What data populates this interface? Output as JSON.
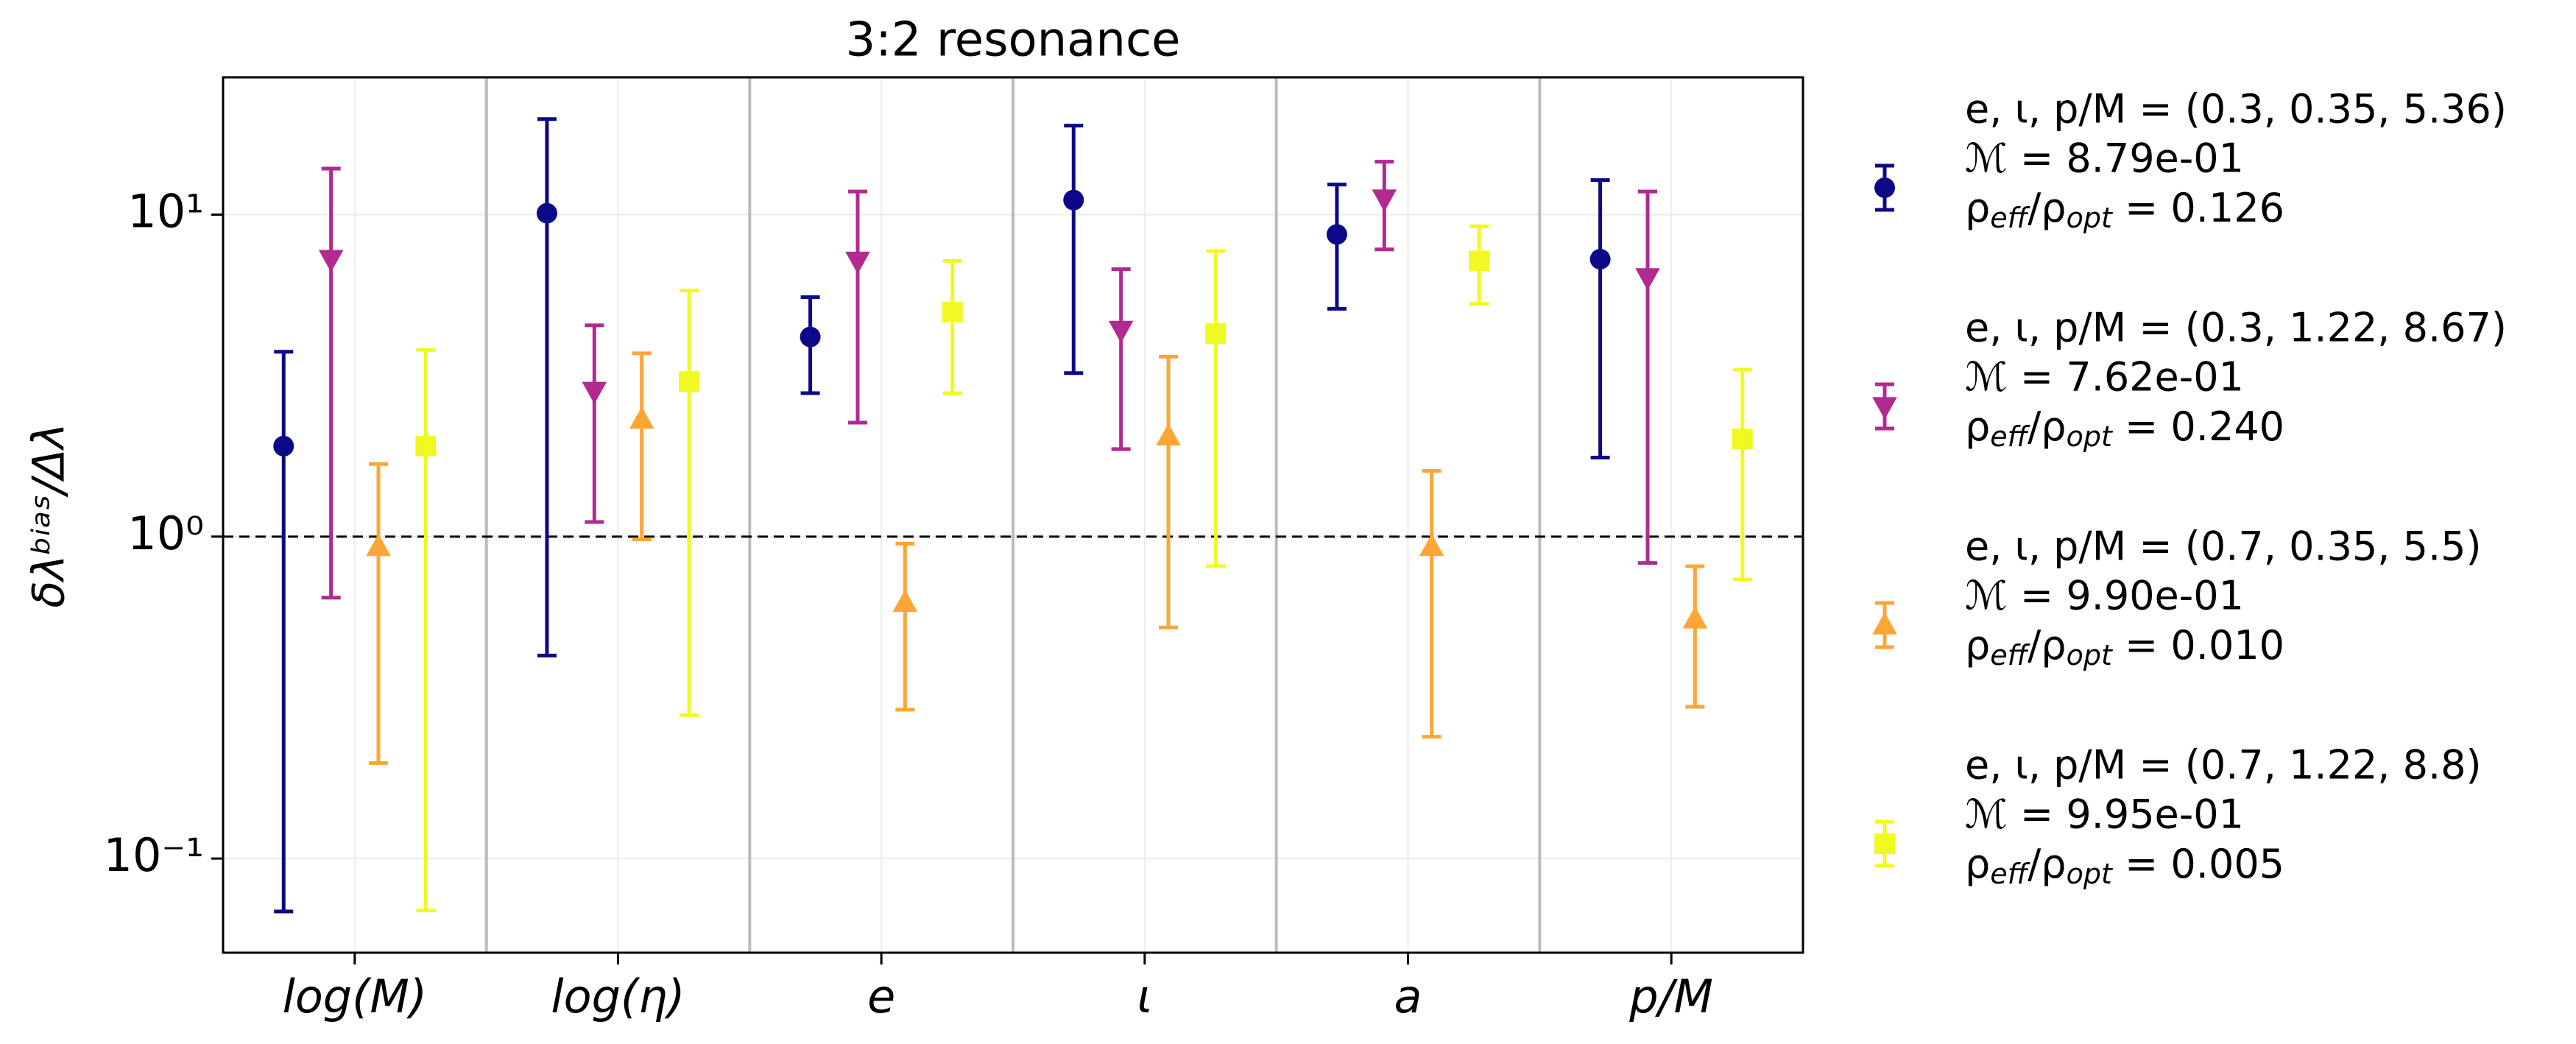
{
  "chart_data": {
    "type": "errorbar",
    "title": "3:2 resonance",
    "ylabel": "δλᵇⁱᵃˢ/Δλ",
    "categories": [
      "log(M)",
      "log(η)",
      "e",
      "ι",
      "a",
      "p/M"
    ],
    "log_y": true,
    "ylim": [
      0.051,
      26.7
    ],
    "yticks": [
      {
        "value": 0.1,
        "label": "10⁻¹"
      },
      {
        "value": 1,
        "label": "10⁰"
      },
      {
        "value": 10,
        "label": "10¹"
      }
    ],
    "grid": true,
    "hline": 1,
    "series": [
      {
        "name": [
          "e, ι, p/M = (0.3, 0.35, 5.36)",
          "ℳ = 8.79e-01",
          "ρeff/ρopt = 0.126"
        ],
        "color": "#0d0887",
        "marker": "circle",
        "values": [
          1.91,
          10.1,
          4.17,
          11.1,
          8.68,
          7.27
        ],
        "lower": [
          0.0685,
          0.427,
          2.79,
          3.22,
          5.1,
          1.76
        ],
        "upper": [
          3.75,
          19.8,
          5.54,
          18.9,
          12.4,
          12.8
        ]
      },
      {
        "name": [
          "e, ι, p/M = (0.3, 1.22, 8.67)",
          "ℳ = 7.62e-01",
          "ρeff/ρopt = 0.240"
        ],
        "color": "#b12a90",
        "marker": "triangle-down",
        "values": [
          7.27,
          2.83,
          7.18,
          4.38,
          11.2,
          6.38
        ],
        "lower": [
          0.646,
          1.11,
          2.26,
          1.87,
          7.8,
          0.828
        ],
        "upper": [
          13.9,
          4.53,
          11.8,
          6.77,
          14.6,
          11.8
        ]
      },
      {
        "name": [
          "e, ι, p/M = (0.7, 0.35, 5.5)",
          "ℳ = 9.90e-01",
          "ρeff/ρopt = 0.010"
        ],
        "color": "#fca636",
        "marker": "triangle-up",
        "values": [
          0.93,
          2.31,
          0.624,
          2.05,
          0.93,
          0.554
        ],
        "lower": [
          0.198,
          0.98,
          0.29,
          0.522,
          0.239,
          0.296
        ],
        "upper": [
          1.68,
          3.71,
          0.95,
          3.62,
          1.6,
          0.809
        ]
      },
      {
        "name": [
          "e, ι, p/M = (0.7, 1.22, 8.8)",
          "ℳ = 9.95e-01",
          "ρeff/ρopt = 0.005"
        ],
        "color": "#f0f921",
        "marker": "square",
        "values": [
          1.91,
          3.03,
          4.98,
          4.27,
          7.18,
          2.01
        ],
        "lower": [
          0.069,
          0.279,
          2.79,
          0.809,
          5.28,
          0.736
        ],
        "upper": [
          3.8,
          5.81,
          7.18,
          7.71,
          9.2,
          3.3
        ]
      }
    ]
  }
}
